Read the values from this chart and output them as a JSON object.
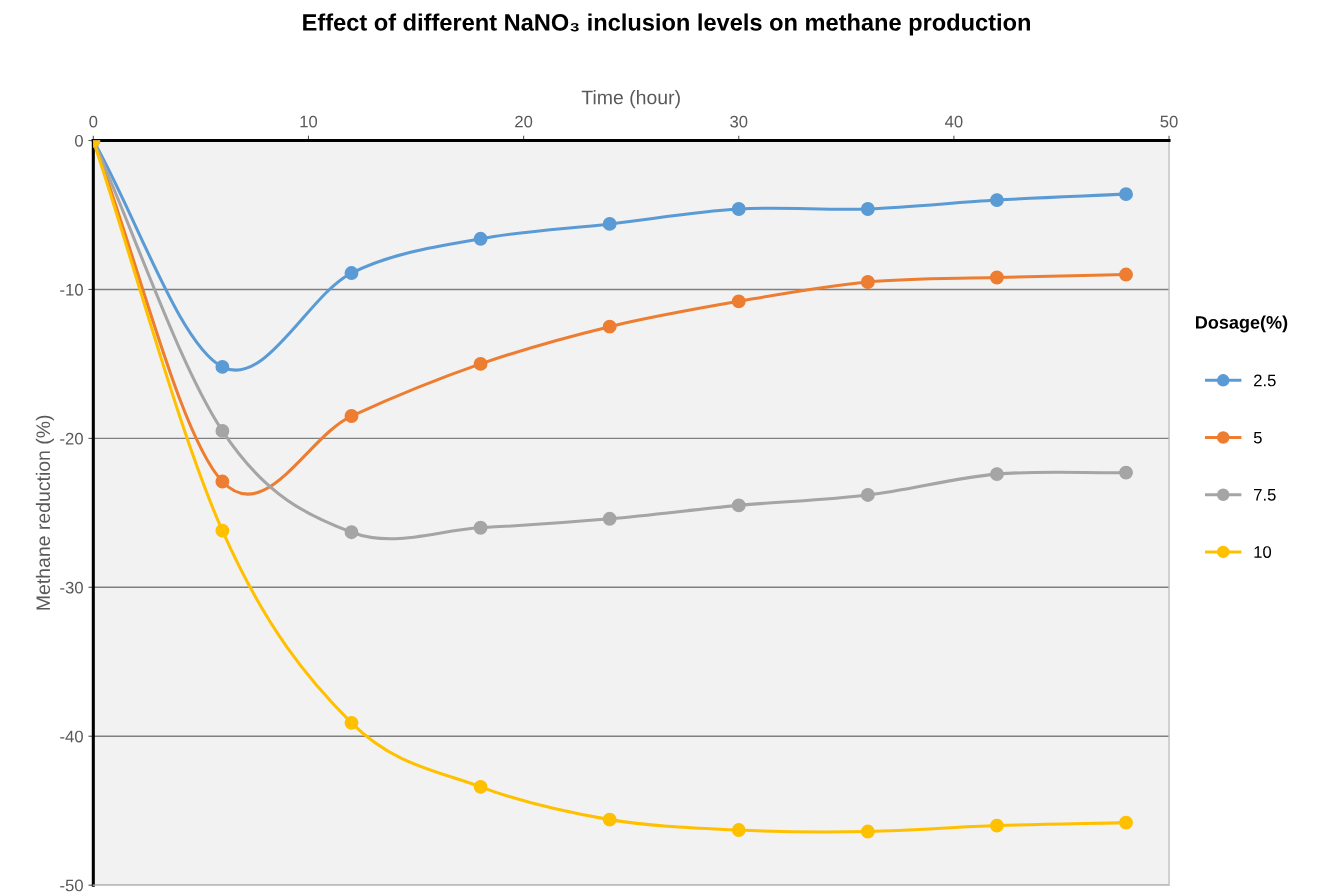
{
  "chart_data": {
    "type": "line",
    "title": "Effect of different NaNO₃ inclusion levels on methane production",
    "xlabel": "Time (hour)",
    "ylabel": "Methane reduction (%)",
    "legend_title": "Dosage(%)",
    "legend": "right",
    "grid": "y",
    "marker": "circle",
    "line_style": "solid",
    "x": [
      0,
      6,
      12,
      18,
      24,
      30,
      36,
      42,
      48
    ],
    "xlim": [
      0,
      50
    ],
    "xticks": [
      0,
      10,
      20,
      30,
      40,
      50
    ],
    "ylim": [
      -50,
      0
    ],
    "yticks": [
      -50,
      -40,
      -30,
      -20,
      -10,
      0
    ],
    "series": [
      {
        "name": "2.5",
        "color": "#5b9bd5",
        "values": [
          0,
          -15.2,
          -8.9,
          -6.6,
          -5.6,
          -4.6,
          -4.6,
          -4.0,
          -3.6
        ]
      },
      {
        "name": "5",
        "color": "#ed7d31",
        "values": [
          0,
          -22.9,
          -18.5,
          -15.0,
          -12.5,
          -10.8,
          -9.5,
          -9.2,
          -9.0
        ]
      },
      {
        "name": "7.5",
        "color": "#a5a5a5",
        "values": [
          0,
          -19.5,
          -26.3,
          -26.0,
          -25.4,
          -24.5,
          -23.8,
          -22.4,
          -22.3
        ]
      },
      {
        "name": "10",
        "color": "#ffc000",
        "values": [
          0,
          -26.2,
          -39.1,
          -43.4,
          -45.6,
          -46.3,
          -46.4,
          -46.0,
          -45.8
        ]
      }
    ]
  }
}
